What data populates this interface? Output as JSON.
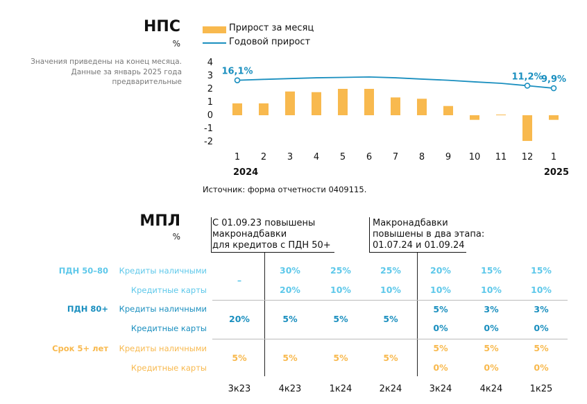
{
  "nps": {
    "title": "НПС",
    "unit": "%",
    "note_lines": [
      "Значения приведены на конец месяца.",
      "Данные за январь 2025 года",
      "предварительные"
    ],
    "legend": {
      "monthly": "Прирост за месяц",
      "annual": "Годовой прирост"
    },
    "source": "Источник: форма отчетности 0409115."
  },
  "chart_data": {
    "type": "bar",
    "categories": [
      "1",
      "2",
      "3",
      "4",
      "5",
      "6",
      "7",
      "8",
      "9",
      "10",
      "11",
      "12",
      "1"
    ],
    "year_labels": [
      "2024",
      "2025"
    ],
    "series": [
      {
        "name": "Прирост за месяц",
        "type": "bar",
        "color": "#f8b94e",
        "values": [
          0.9,
          0.9,
          1.8,
          1.75,
          2.0,
          2.0,
          1.35,
          1.25,
          0.7,
          -0.35,
          0.05,
          -1.95,
          -0.35
        ]
      },
      {
        "name": "Годовой прирост",
        "type": "line",
        "color": "#1a8fbf",
        "values": [
          2.65,
          2.72,
          2.78,
          2.84,
          2.87,
          2.9,
          2.84,
          2.74,
          2.65,
          2.53,
          2.42,
          2.24,
          2.05
        ]
      }
    ],
    "annotations": [
      {
        "index": 0,
        "label": "16,1%"
      },
      {
        "index": 11,
        "label": "11,2%"
      },
      {
        "index": 12,
        "label": "9,9%"
      }
    ],
    "ylim": [
      -2,
      4
    ],
    "yticks": [
      4,
      3,
      2,
      1,
      0,
      -1,
      -2
    ],
    "title": "НПС",
    "xlabel": "",
    "ylabel": "%"
  },
  "mpl": {
    "title": "МПЛ",
    "unit": "%",
    "header1": [
      "С 01.09.23 повышены",
      "макронадбавки",
      "для кредитов с ПДН 50+"
    ],
    "header2": [
      "Макронадбавки",
      "повышены в два этапа:",
      "01.07.24 и 01.09.24"
    ],
    "groups": [
      "ПДН 50–80",
      "ПДН 80+",
      "Срок 5+ лет"
    ],
    "row_labels": [
      "Кредиты наличными",
      "Кредитные карты"
    ],
    "merged": [
      "–",
      "20%",
      "5%"
    ],
    "quarters": [
      "3к23",
      "4к23",
      "1к24",
      "2к24",
      "3к24",
      "4к24",
      "1к25"
    ],
    "g1_r1": [
      "30%",
      "25%",
      "25%",
      "20%",
      "15%",
      "15%"
    ],
    "g1_r2": [
      "20%",
      "10%",
      "10%",
      "10%",
      "10%",
      "10%"
    ],
    "g2_mid": [
      "5%",
      "5%",
      "5%"
    ],
    "g2_r1": [
      "5%",
      "3%",
      "3%"
    ],
    "g2_r2": [
      "0%",
      "0%",
      "0%"
    ],
    "g3_mid": [
      "5%",
      "5%",
      "5%"
    ],
    "g3_r1": [
      "5%",
      "5%",
      "5%"
    ],
    "g3_r2": [
      "0%",
      "0%",
      "0%"
    ]
  }
}
